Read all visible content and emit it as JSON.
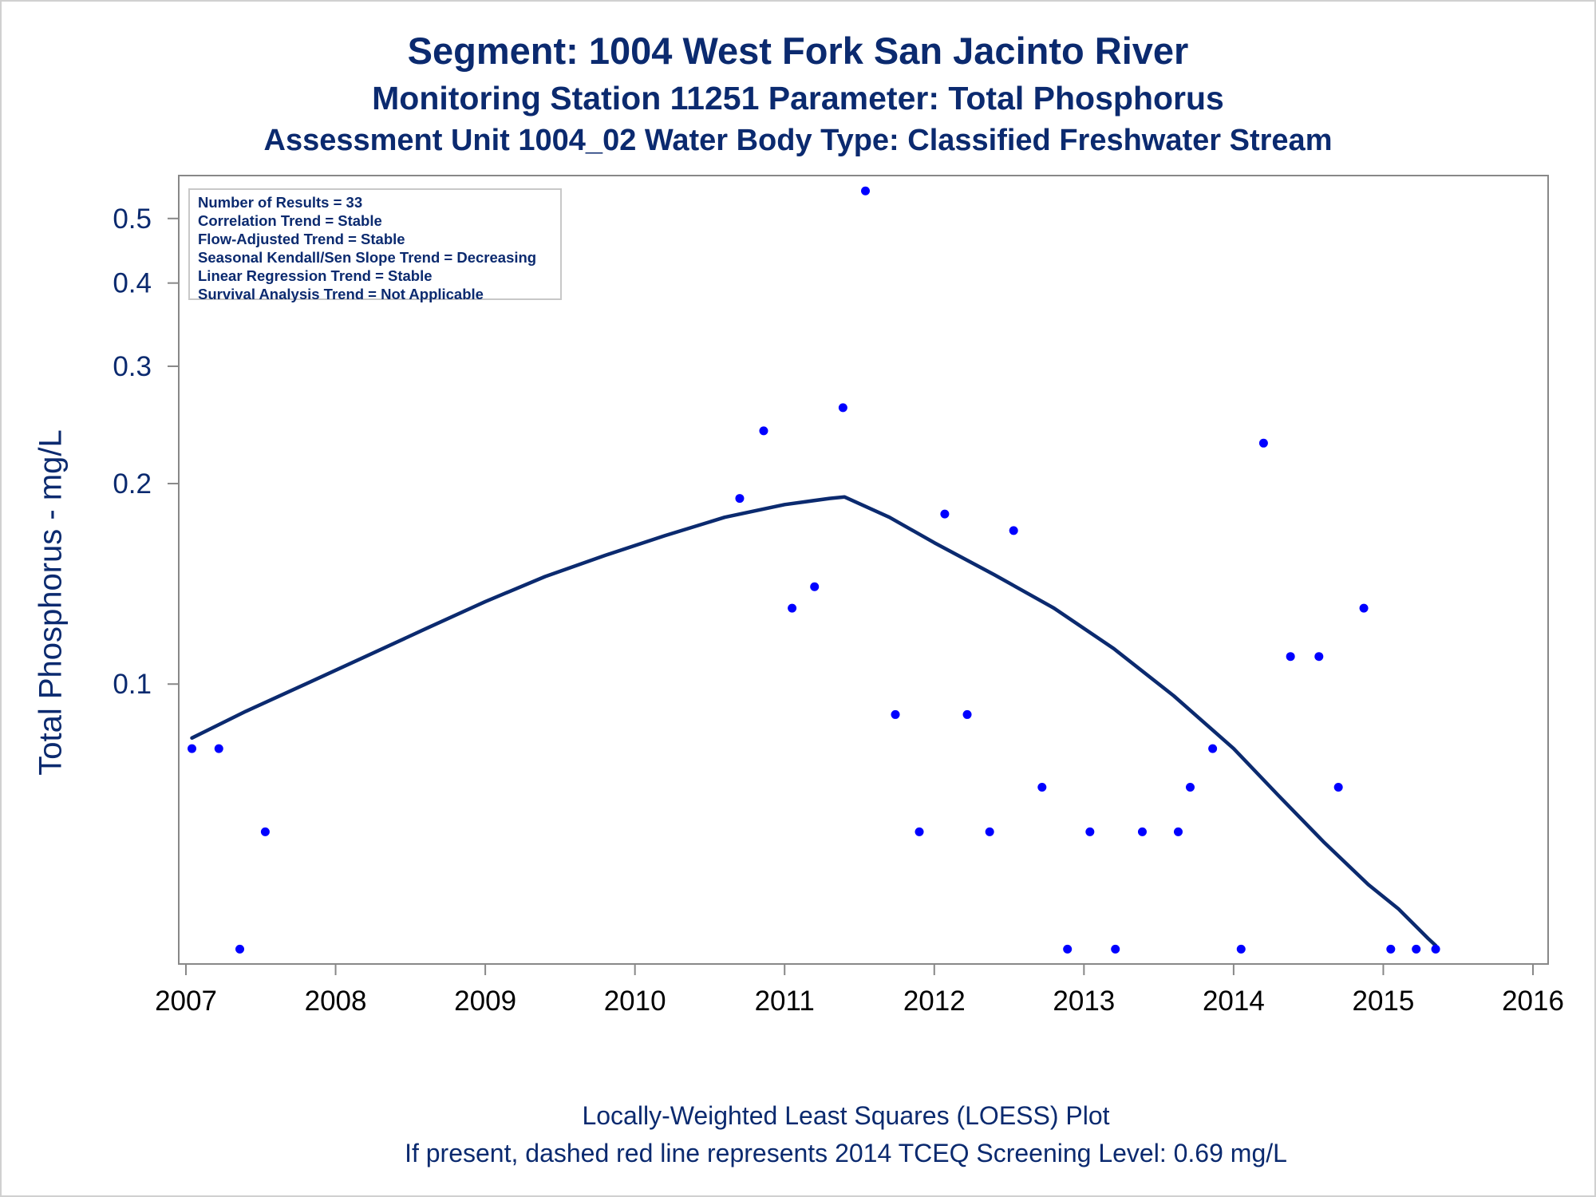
{
  "titles": {
    "line1": "Segment: 1004  West Fork San Jacinto River",
    "line2": "Monitoring Station 11251 Parameter: Total Phosphorus",
    "line3": "Assessment Unit 1004_02   Water Body Type: Classified Freshwater Stream"
  },
  "footnotes": {
    "line1": "Locally-Weighted Least Squares (LOESS) Plot",
    "line2": "If present, dashed red line represents 2014 TCEQ Screening Level: 0.69 mg/L"
  },
  "legend_box": {
    "lines": [
      "Number of Results = 33",
      "Correlation Trend = Stable",
      "Flow-Adjusted Trend = Stable",
      "Seasonal Kendall/Sen Slope Trend = Decreasing",
      "Linear Regression Trend = Stable",
      "Survival Analysis Trend = Not Applicable"
    ]
  },
  "colors": {
    "text": "#0b2a6f",
    "points": "#0000ff",
    "loess_line": "#0b2a6f",
    "axis": "#888888"
  },
  "chart_data": {
    "type": "scatter",
    "ylabel": "Total Phosphorus - mg/L",
    "xlabel": "",
    "y_scale": "log",
    "xlim": [
      2007,
      2016
    ],
    "ylim": [
      0.038,
      0.58
    ],
    "x_ticks": [
      2007,
      2008,
      2009,
      2010,
      2011,
      2012,
      2013,
      2014,
      2015,
      2016
    ],
    "x_tick_labels": [
      "2007",
      "2008",
      "2009",
      "2010",
      "2011",
      "2012",
      "2013",
      "2014",
      "2015",
      "2016"
    ],
    "y_ticks": [
      0.1,
      0.2,
      0.3,
      0.4,
      0.5
    ],
    "y_tick_labels": [
      "0.1",
      "0.2",
      "0.3",
      "0.4",
      "0.5"
    ],
    "grid": false,
    "series": [
      {
        "kind": "points",
        "x": [
          2007.04,
          2007.22,
          2007.36,
          2007.53,
          2010.7,
          2010.86,
          2011.05,
          2011.2,
          2011.39,
          2011.54,
          2011.74,
          2011.9,
          2012.07,
          2012.22,
          2012.37,
          2012.53,
          2012.72,
          2012.89,
          2013.04,
          2013.21,
          2013.39,
          2013.63,
          2013.71,
          2013.86,
          2014.05,
          2014.2,
          2014.38,
          2014.57,
          2014.7,
          2014.87,
          2015.05,
          2015.22,
          2015.35
        ],
        "y": [
          0.08,
          0.08,
          0.04,
          0.06,
          0.19,
          0.24,
          0.13,
          0.14,
          0.26,
          0.55,
          0.09,
          0.06,
          0.18,
          0.09,
          0.06,
          0.17,
          0.07,
          0.04,
          0.06,
          0.04,
          0.06,
          0.06,
          0.07,
          0.08,
          0.04,
          0.23,
          0.11,
          0.11,
          0.07,
          0.13,
          0.04,
          0.04,
          0.04
        ]
      },
      {
        "kind": "loess",
        "x": [
          2007.04,
          2007.4,
          2007.8,
          2008.2,
          2008.6,
          2009.0,
          2009.4,
          2009.8,
          2010.2,
          2010.6,
          2011.0,
          2011.3,
          2011.4,
          2011.7,
          2012.0,
          2012.4,
          2012.8,
          2013.2,
          2013.6,
          2014.0,
          2014.3,
          2014.6,
          2014.9,
          2015.1,
          2015.3,
          2015.35
        ],
        "y": [
          0.083,
          0.091,
          0.1,
          0.11,
          0.121,
          0.133,
          0.145,
          0.156,
          0.167,
          0.178,
          0.186,
          0.19,
          0.191,
          0.178,
          0.163,
          0.146,
          0.13,
          0.113,
          0.096,
          0.08,
          0.068,
          0.058,
          0.05,
          0.046,
          0.0415,
          0.0405
        ]
      }
    ]
  }
}
